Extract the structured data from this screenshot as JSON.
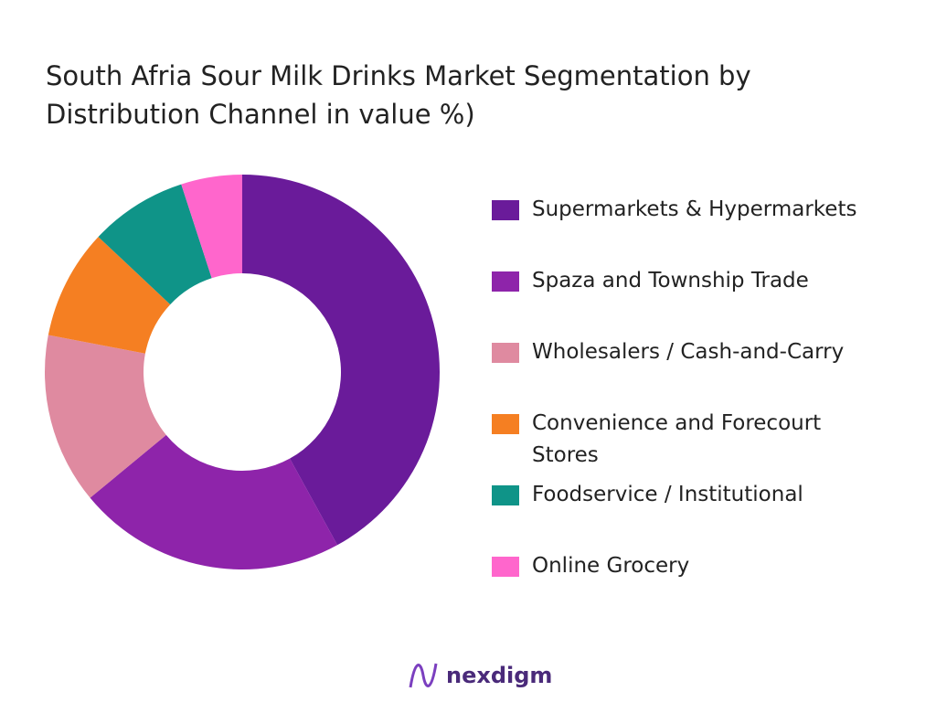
{
  "chart_data": {
    "type": "donut",
    "title": "South Afria Sour Milk Drinks Market Segmentation by Distribution Channel in value %)",
    "categories": [
      "Supermarkets & Hypermarkets",
      "Spaza and Township Trade",
      "Wholesalers / Cash-and-Carry",
      "Convenience and Forecourt Stores",
      "Foodservice / Institutional",
      "Online Grocery"
    ],
    "values": [
      42,
      22,
      14,
      9,
      8,
      5
    ],
    "colors": [
      "#6a1b9a",
      "#8e24aa",
      "#df8aa0",
      "#f57f22",
      "#0f9488",
      "#ff66cc"
    ],
    "legend": "right"
  },
  "brand": "nexdigm"
}
